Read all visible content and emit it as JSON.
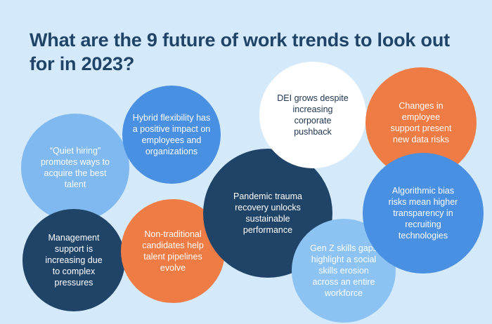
{
  "title": "What are the 9 future of work trends to look out for in 2023?",
  "trends": {
    "quiet_hiring": "“Quiet hiring” promotes ways to acquire the best talent",
    "hybrid": "Hybrid flexibility has a positive impact on employees and organizations",
    "dei": "DEI grows despite increasing corporate pushback",
    "data_risks": "Changes in employee support present new data risks",
    "pandemic": "Pandemic trauma recovery unlocks sustainable performance",
    "algorithmic": "Algorithmic bias risks mean higher transparency in recruiting technologies",
    "management": "Management support is increasing due to complex pressures",
    "non_traditional": "Non-traditional candidates help talent pipelines evolve",
    "gen_z": "Gen Z skills gaps highlight a social skills erosion across an entire workforce"
  },
  "colors": {
    "background": "#d4e9f9",
    "navy": "#1f4468",
    "orange": "#f07c45",
    "blue": "#4a90e2",
    "light_blue": "#7fb9ef",
    "white": "#ffffff"
  }
}
